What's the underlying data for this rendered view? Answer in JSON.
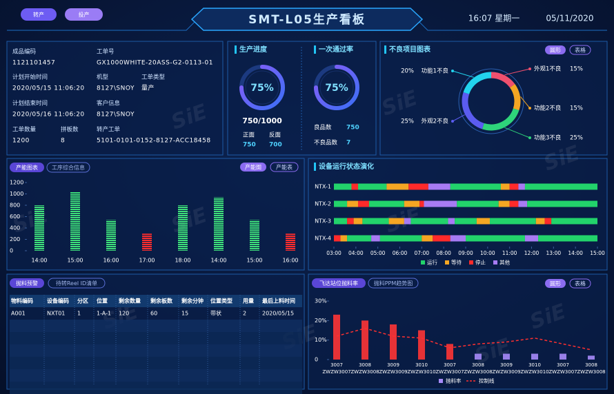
{
  "header": {
    "buttons": [
      "转产",
      "投产"
    ],
    "title": "SMT-L05生产看板",
    "time": "16:07 星期一",
    "date": "05/11/2020"
  },
  "watermark": "SiE",
  "order_info": {
    "fields": [
      {
        "label": "成品编码",
        "value": "1121101457"
      },
      {
        "label": "工单号",
        "value": "GX1000WHITE-20ASS-G2-0113-01"
      },
      {
        "label": "计划开始时间",
        "value": "2020/05/15 11:06:20"
      },
      {
        "label": "机型",
        "value": "8127\\SNOY"
      },
      {
        "label": "工单类型",
        "value": "量产"
      },
      {
        "label": "计划结束时间",
        "value": "2020/05/16 11:06:20"
      },
      {
        "label": "客户信息",
        "value": "8127\\SNOY"
      },
      {
        "label": "工单数量",
        "value": 1200
      },
      {
        "label": "拼板数",
        "value": 8
      },
      {
        "label": "转产工单",
        "value": "5101-0101-0152-8127-ACC18458"
      }
    ]
  },
  "production": {
    "progress": {
      "title": "生产进度",
      "percent": 75,
      "percent_label": "75%",
      "ratio": "750/1000",
      "front_label": "正面",
      "front": 750,
      "back_label": "反面",
      "back": 700
    },
    "first_pass": {
      "title": "一次通过率",
      "percent": 75,
      "percent_label": "75%",
      "good_label": "良品数",
      "good": 750,
      "bad_label": "不良品数",
      "bad": 7
    }
  },
  "defects": {
    "type": "donut",
    "title": "不良项目图表",
    "buttons": [
      "圆形",
      "表格"
    ],
    "categories": [
      "外观1不良",
      "功能2不良",
      "功能3不良",
      "外观2不良",
      "功能1不良"
    ],
    "values": [
      15,
      15,
      25,
      25,
      20
    ],
    "value_labels": [
      "15%",
      "15%",
      "25%",
      "25%",
      "20%"
    ],
    "colors": [
      "#f0506e",
      "#f5a623",
      "#2ed47a",
      "#5b5cf0",
      "#22d3ee"
    ]
  },
  "capacity": {
    "type": "bar",
    "title": "产能图表",
    "tab": "工序综合信息",
    "buttons": [
      "产能图",
      "产能表"
    ],
    "categories": [
      "14:00",
      "15:00",
      "16:00",
      "17:00",
      "18:00",
      "14:00",
      "15:00",
      "16:00"
    ],
    "values": [
      800,
      1030,
      540,
      300,
      800,
      940,
      540,
      300
    ],
    "colors": [
      "#3ee07a",
      "#3ee07a",
      "#3ee07a",
      "#ff2d2d",
      "#3ee07a",
      "#3ee07a",
      "#3ee07a",
      "#ff2d2d"
    ],
    "ylim": [
      0,
      1200
    ],
    "yticks": [
      0,
      200,
      400,
      600,
      800,
      1000,
      1200
    ]
  },
  "status": {
    "type": "timeline",
    "title": "设备运行状态演化",
    "states": [
      {
        "name": "运行",
        "color": "#22d36b"
      },
      {
        "name": "等待",
        "color": "#f5a623"
      },
      {
        "name": "停止",
        "color": "#ff2a2a"
      },
      {
        "name": "其他",
        "color": "#a77bf3"
      }
    ],
    "xlim": [
      3,
      15
    ],
    "xticks": [
      {
        "value": 3,
        "label": "03:00"
      },
      {
        "value": 4,
        "label": "04:00"
      },
      {
        "value": 5,
        "label": "05:00"
      },
      {
        "value": 6,
        "label": "06:00"
      },
      {
        "value": 7,
        "label": "07:00"
      },
      {
        "value": 8,
        "label": "08:00"
      },
      {
        "value": 9,
        "label": "09:00"
      },
      {
        "value": 10,
        "label": "10:00"
      },
      {
        "value": 11,
        "label": "11:00"
      },
      {
        "value": 12,
        "label": "12:00"
      },
      {
        "value": 13,
        "label": "13:00"
      },
      {
        "value": 14,
        "label": "14:00"
      },
      {
        "value": 15,
        "label": "15:00"
      }
    ],
    "rows": [
      {
        "name": "NTX-1",
        "segments": [
          {
            "start": 3,
            "end": 3.8,
            "state": 0
          },
          {
            "start": 3.8,
            "end": 4.1,
            "state": 2
          },
          {
            "start": 4.1,
            "end": 5.4,
            "state": 0
          },
          {
            "start": 5.4,
            "end": 6.4,
            "state": 1
          },
          {
            "start": 6.4,
            "end": 7.3,
            "state": 2
          },
          {
            "start": 7.3,
            "end": 8.3,
            "state": 3
          },
          {
            "start": 8.3,
            "end": 10.6,
            "state": 0
          },
          {
            "start": 10.6,
            "end": 11,
            "state": 1
          },
          {
            "start": 11,
            "end": 11.4,
            "state": 2
          },
          {
            "start": 11.4,
            "end": 11.7,
            "state": 3
          },
          {
            "start": 11.7,
            "end": 15,
            "state": 0
          }
        ]
      },
      {
        "name": "NTX-2",
        "segments": [
          {
            "start": 3,
            "end": 3.6,
            "state": 0
          },
          {
            "start": 3.6,
            "end": 4.1,
            "state": 1
          },
          {
            "start": 4.1,
            "end": 4.6,
            "state": 2
          },
          {
            "start": 4.6,
            "end": 6.2,
            "state": 0
          },
          {
            "start": 6.2,
            "end": 6.9,
            "state": 1
          },
          {
            "start": 6.9,
            "end": 7.1,
            "state": 2
          },
          {
            "start": 7.1,
            "end": 8.6,
            "state": 3
          },
          {
            "start": 8.6,
            "end": 10.5,
            "state": 0
          },
          {
            "start": 10.5,
            "end": 11,
            "state": 1
          },
          {
            "start": 11,
            "end": 11.4,
            "state": 2
          },
          {
            "start": 11.4,
            "end": 11.8,
            "state": 3
          },
          {
            "start": 11.8,
            "end": 15,
            "state": 0
          }
        ]
      },
      {
        "name": "NTX-3",
        "segments": [
          {
            "start": 3,
            "end": 3.6,
            "state": 0
          },
          {
            "start": 3.6,
            "end": 3.9,
            "state": 2
          },
          {
            "start": 3.9,
            "end": 4.3,
            "state": 1
          },
          {
            "start": 4.3,
            "end": 5.5,
            "state": 0
          },
          {
            "start": 5.5,
            "end": 6.2,
            "state": 1
          },
          {
            "start": 6.2,
            "end": 6.5,
            "state": 3
          },
          {
            "start": 6.5,
            "end": 8.2,
            "state": 0
          },
          {
            "start": 8.2,
            "end": 8.5,
            "state": 3
          },
          {
            "start": 8.5,
            "end": 9.5,
            "state": 0
          },
          {
            "start": 9.5,
            "end": 10.1,
            "state": 1
          },
          {
            "start": 10.1,
            "end": 12.2,
            "state": 0
          },
          {
            "start": 12.2,
            "end": 12.6,
            "state": 1
          },
          {
            "start": 12.6,
            "end": 12.9,
            "state": 2
          },
          {
            "start": 12.9,
            "end": 15,
            "state": 0
          }
        ]
      },
      {
        "name": "NTX-4",
        "segments": [
          {
            "start": 3,
            "end": 3.3,
            "state": 2
          },
          {
            "start": 3.3,
            "end": 3.6,
            "state": 1
          },
          {
            "start": 3.6,
            "end": 4.7,
            "state": 0
          },
          {
            "start": 4.7,
            "end": 5.1,
            "state": 3
          },
          {
            "start": 5.1,
            "end": 7,
            "state": 0
          },
          {
            "start": 7,
            "end": 7.5,
            "state": 1
          },
          {
            "start": 7.5,
            "end": 8.3,
            "state": 2
          },
          {
            "start": 8.3,
            "end": 9,
            "state": 3
          },
          {
            "start": 9,
            "end": 11.7,
            "state": 0
          },
          {
            "start": 11.7,
            "end": 12.3,
            "state": 3
          },
          {
            "start": 12.3,
            "end": 15,
            "state": 0
          }
        ]
      }
    ]
  },
  "material": {
    "title": "抛料预警",
    "tab": "待转Reel ID清单",
    "columns": [
      "物料编码",
      "设备编码",
      "分区",
      "位置",
      "剩余数量",
      "剩余板数",
      "剩余分钟",
      "位置类型",
      "用量",
      "最后上料时间"
    ],
    "rows": [
      [
        "A001",
        "NXT01",
        1,
        "1-A-1",
        120,
        60,
        15,
        "带状",
        2,
        "2020/05/15"
      ]
    ]
  },
  "throw_rate": {
    "type": "bar",
    "title": "飞达站位抛料率",
    "tab": "抛料PPM趋势图",
    "buttons": [
      "圆形",
      "表格"
    ],
    "categories": [
      [
        "3007",
        "ZWZW3007"
      ],
      [
        "3008",
        "ZWZW3008"
      ],
      [
        "3009",
        "ZWZW3009"
      ],
      [
        "3010",
        "ZWZW3010"
      ],
      [
        "3007",
        "ZWZW3007"
      ],
      [
        "3008",
        "ZWZW3008"
      ],
      [
        "3009",
        "ZWZW3009"
      ],
      [
        "3010",
        "ZWZW3010"
      ],
      [
        "3007",
        "ZWZW3007"
      ],
      [
        "3008",
        "ZWZW3008"
      ]
    ],
    "series": [
      {
        "name": "抛料率",
        "type": "bar",
        "color": "#a78bfa",
        "colors": [
          "#ff3535",
          "#ff3535",
          "#ff3535",
          "#ff3535",
          "#ff3535",
          "#a78bfa",
          "#a78bfa",
          "#a78bfa",
          "#a78bfa",
          "#a78bfa"
        ],
        "values": [
          23,
          20,
          18,
          15,
          8,
          3,
          3,
          3,
          3,
          2
        ]
      },
      {
        "name": "控制线",
        "type": "line",
        "color": "#ff3030",
        "values": [
          12,
          16,
          12,
          11,
          6,
          8,
          9,
          11,
          8,
          5
        ]
      }
    ],
    "ylim": [
      0,
      30
    ],
    "yticks": [
      0,
      {
        "value": 10,
        "label": "10%"
      },
      {
        "value": 20,
        "label": "20%"
      },
      {
        "value": 30,
        "label": "30%"
      }
    ]
  }
}
